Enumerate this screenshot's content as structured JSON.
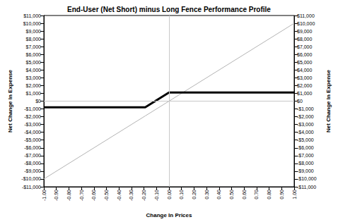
{
  "chart_data": {
    "type": "line",
    "title": "End-User (Net Short) minus Long Fence Performance Profile",
    "x_label": "Change In Prices",
    "y_label": "Net Change In Expense",
    "x": [
      -1.0,
      -0.19,
      0.0,
      1.0
    ],
    "series": [
      {
        "color": "#b4b4b4",
        "line_style": "thin",
        "values": [
          -10000,
          -1900,
          0,
          10000
        ]
      },
      {
        "color": "#000000",
        "line_style": "thick",
        "values": [
          -800,
          -800,
          1100,
          1100
        ]
      }
    ],
    "xlim": [
      -1.0,
      1.0
    ],
    "xticks": [
      {
        "value": -1.0,
        "label": "-1.00"
      },
      {
        "value": -0.9,
        "label": "-0.90"
      },
      {
        "value": -0.8,
        "label": "-0.80"
      },
      {
        "value": -0.7,
        "label": "-0.70"
      },
      {
        "value": -0.6,
        "label": "-0.60"
      },
      {
        "value": -0.5,
        "label": "-0.50"
      },
      {
        "value": -0.4,
        "label": "-0.40"
      },
      {
        "value": -0.3,
        "label": "-0.30"
      },
      {
        "value": -0.2,
        "label": "-0.20"
      },
      {
        "value": -0.1,
        "label": "-0.10"
      },
      {
        "value": 0.0,
        "label": "0.00"
      },
      {
        "value": 0.1,
        "label": "0.10"
      },
      {
        "value": 0.2,
        "label": "0.20"
      },
      {
        "value": 0.3,
        "label": "0.30"
      },
      {
        "value": 0.4,
        "label": "0.40"
      },
      {
        "value": 0.5,
        "label": "0.50"
      },
      {
        "value": 0.6,
        "label": "0.60"
      },
      {
        "value": 0.7,
        "label": "0.70"
      },
      {
        "value": 0.8,
        "label": "0.80"
      },
      {
        "value": 0.9,
        "label": "0.90"
      },
      {
        "value": 1.0,
        "label": "1.00"
      }
    ],
    "ylim": [
      -11000,
      11000
    ],
    "yticks": [
      {
        "value": -11000,
        "label": "-$11,000"
      },
      {
        "value": -10000,
        "label": "-$10,000"
      },
      {
        "value": -9000,
        "label": "-$9,000"
      },
      {
        "value": -8000,
        "label": "-$8,000"
      },
      {
        "value": -7000,
        "label": "-$7,000"
      },
      {
        "value": -6000,
        "label": "-$6,000"
      },
      {
        "value": -5000,
        "label": "-$5,000"
      },
      {
        "value": -4000,
        "label": "-$4,000"
      },
      {
        "value": -3000,
        "label": "-$3,000"
      },
      {
        "value": -2000,
        "label": "-$2,000"
      },
      {
        "value": -1000,
        "label": "-$1,000"
      },
      {
        "value": 0,
        "label": "$0"
      },
      {
        "value": 1000,
        "label": "$1,000"
      },
      {
        "value": 2000,
        "label": "$2,000"
      },
      {
        "value": 3000,
        "label": "$3,000"
      },
      {
        "value": 4000,
        "label": "$4,000"
      },
      {
        "value": 5000,
        "label": "$5,000"
      },
      {
        "value": 6000,
        "label": "$6,000"
      },
      {
        "value": 7000,
        "label": "$7,000"
      },
      {
        "value": 8000,
        "label": "$8,000"
      },
      {
        "value": 9000,
        "label": "$9,000"
      },
      {
        "value": 10000,
        "label": "$10,000"
      },
      {
        "value": 11000,
        "label": "$11,000"
      }
    ],
    "grid": false
  }
}
